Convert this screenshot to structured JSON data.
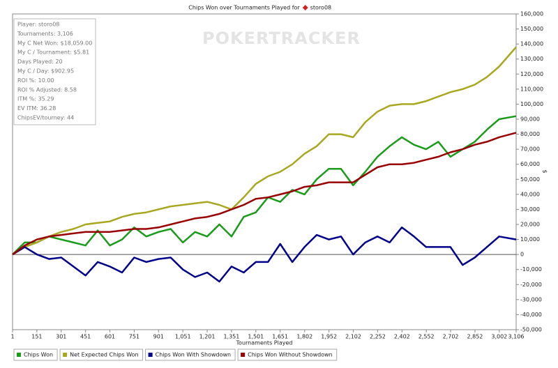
{
  "chart_data": {
    "type": "line",
    "title": "Chips Won over Tournaments Played for",
    "player": "storo08",
    "watermark": "POKERTRACKER",
    "x_label": "Tournaments Played",
    "y_label": "$",
    "stats": [
      "Player: storo08",
      "Tournaments: 3,106",
      "My C Net Won: $18,059.00",
      "My C / Tournament: $5.81",
      "Days Played: 20",
      "My C / Day: $902.95",
      "ROI %: 10.00",
      "ROI % Adjusted: 8.58",
      "ITM %: 35.29",
      "EV ITM: 36.28",
      "ChipsEV/tourney: 44"
    ],
    "x": [
      1,
      76,
      151,
      226,
      301,
      376,
      451,
      526,
      601,
      676,
      751,
      826,
      901,
      976,
      1051,
      1126,
      1201,
      1276,
      1351,
      1426,
      1501,
      1576,
      1651,
      1726,
      1801,
      1876,
      1951,
      2026,
      2101,
      2176,
      2251,
      2326,
      2401,
      2476,
      2551,
      2626,
      2701,
      2776,
      2851,
      2926,
      3001,
      3106
    ],
    "series": [
      {
        "name": "Chips Won",
        "color": "#1a9c1a",
        "values": [
          0,
          8000,
          8000,
          12000,
          10000,
          8000,
          6000,
          16000,
          6000,
          10000,
          18000,
          12000,
          15000,
          17000,
          8000,
          15000,
          12000,
          20000,
          12000,
          25000,
          28000,
          38000,
          35000,
          43000,
          40000,
          50000,
          57000,
          57000,
          46000,
          55000,
          65000,
          72000,
          78000,
          73000,
          70000,
          75000,
          65000,
          70000,
          75000,
          83000,
          90000,
          92000
        ]
      },
      {
        "name": "Net Expected Chips Won",
        "color": "#a8a820",
        "values": [
          0,
          5000,
          8000,
          12000,
          15000,
          17000,
          20000,
          21000,
          22000,
          25000,
          27000,
          28000,
          30000,
          32000,
          33000,
          34000,
          35000,
          33000,
          30000,
          38000,
          47000,
          52000,
          55000,
          60000,
          67000,
          72000,
          80000,
          80000,
          78000,
          88000,
          95000,
          99000,
          100000,
          100000,
          102000,
          105000,
          108000,
          110000,
          113000,
          118000,
          125000,
          138000
        ]
      },
      {
        "name": "Chips Won With Showdown",
        "color": "#00008b",
        "values": [
          0,
          5000,
          0,
          -3000,
          -2000,
          -8000,
          -14000,
          -5000,
          -8000,
          -12000,
          -2000,
          -5000,
          -3000,
          -2000,
          -10000,
          -15000,
          -12000,
          -18000,
          -8000,
          -12000,
          -5000,
          -5000,
          7000,
          -5000,
          5000,
          13000,
          10000,
          12000,
          0,
          8000,
          12000,
          8000,
          18000,
          12000,
          5000,
          5000,
          5000,
          -7000,
          -2000,
          5000,
          12000,
          10000
        ]
      },
      {
        "name": "Chips Won Without Showdown",
        "color": "#990000",
        "values": [
          0,
          6000,
          10000,
          12000,
          13000,
          14000,
          15000,
          15000,
          15000,
          16000,
          17000,
          17000,
          18000,
          20000,
          22000,
          24000,
          25000,
          27000,
          30000,
          33000,
          37000,
          38000,
          40000,
          42000,
          45000,
          46000,
          48000,
          48000,
          48000,
          53000,
          58000,
          60000,
          60000,
          61000,
          63000,
          65000,
          68000,
          70000,
          73000,
          75000,
          78000,
          81000
        ]
      }
    ],
    "xlim": [
      1,
      3106
    ],
    "xticks": [
      1,
      151,
      301,
      451,
      601,
      751,
      901,
      {
        "value": 1051,
        "label": "1,051"
      },
      {
        "value": 1201,
        "label": "1,201"
      },
      {
        "value": 1351,
        "label": "1,351"
      },
      {
        "value": 1501,
        "label": "1,501"
      },
      {
        "value": 1651,
        "label": "1,651"
      },
      {
        "value": 1802,
        "label": "1,802"
      },
      {
        "value": 1952,
        "label": "1,952"
      },
      {
        "value": 2102,
        "label": "2,102"
      },
      {
        "value": 2252,
        "label": "2,252"
      },
      {
        "value": 2402,
        "label": "2,402"
      },
      {
        "value": 2552,
        "label": "2,552"
      },
      {
        "value": 2702,
        "label": "2,702"
      },
      {
        "value": 2852,
        "label": "2,852"
      },
      {
        "value": 3002,
        "label": "3,002"
      },
      {
        "value": 3106,
        "label": "3,106"
      }
    ],
    "ylim": [
      -50000,
      160000
    ],
    "yticks": [
      {
        "value": -50000,
        "label": "-50,000"
      },
      {
        "value": -40000,
        "label": "-40,000"
      },
      {
        "value": -30000,
        "label": "-30,000"
      },
      {
        "value": -20000,
        "label": "-20,000"
      },
      {
        "value": -10000,
        "label": "-10,000"
      },
      0,
      {
        "value": 10000,
        "label": "10,000"
      },
      {
        "value": 20000,
        "label": "20,000"
      },
      {
        "value": 30000,
        "label": "30,000"
      },
      {
        "value": 40000,
        "label": "40,000"
      },
      {
        "value": 50000,
        "label": "50,000"
      },
      {
        "value": 60000,
        "label": "60,000"
      },
      {
        "value": 70000,
        "label": "70,000"
      },
      {
        "value": 80000,
        "label": "80,000"
      },
      {
        "value": 90000,
        "label": "90,000"
      },
      {
        "value": 100000,
        "label": "100,000"
      },
      {
        "value": 110000,
        "label": "110,000"
      },
      {
        "value": 120000,
        "label": "120,000"
      },
      {
        "value": 130000,
        "label": "130,000"
      },
      {
        "value": 140000,
        "label": "140,000"
      },
      {
        "value": 150000,
        "label": "150,000"
      },
      {
        "value": 160000,
        "label": "160,000"
      }
    ],
    "legend": "bottom-left"
  }
}
